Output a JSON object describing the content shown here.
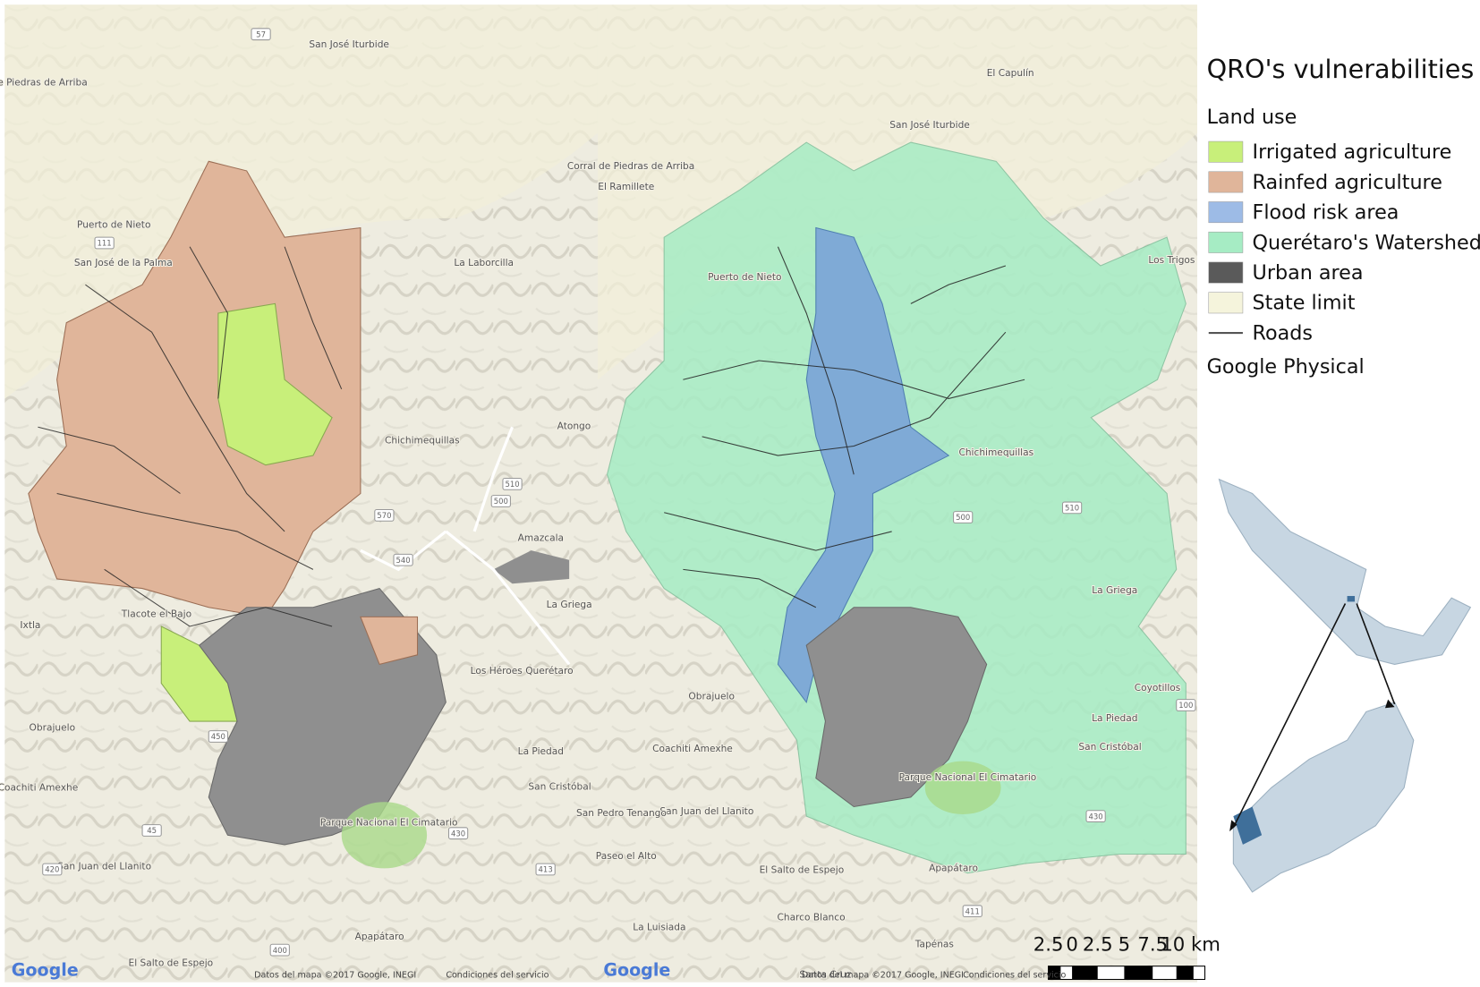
{
  "legend": {
    "title": "QRO's vulnerabilities",
    "group": "Land use",
    "items": [
      {
        "label": "Irrigated agriculture",
        "color": "#c8ef7a"
      },
      {
        "label": "Rainfed agriculture",
        "color": "#e0b59a"
      },
      {
        "label": "Flood risk area",
        "color": "#9dbbe6"
      },
      {
        "label": "Querétaro's Watershed",
        "color": "#a6ecc4"
      },
      {
        "label": "Urban area",
        "color": "#5a5a5a"
      },
      {
        "label": "State limit",
        "color": "#f5f4dc"
      },
      {
        "label": "Roads",
        "color": "#555555"
      }
    ],
    "basemap": "Google Physical"
  },
  "left_map": {
    "places": [
      "San José Iturbide",
      "Corral de Piedras de Arriba",
      "Puerto de Nieto",
      "San José de la Palma",
      "La Laborcilla",
      "Chichimequillas",
      "Amazcala",
      "Tlacote el Bajo",
      "Ixtla",
      "Obrajuelo",
      "Coachiti Amexhe",
      "San Juan del Llanito",
      "El Salto de Espejo",
      "Apapátaro",
      "Parque Nacional El Cimatario",
      "Los Héroes Querétaro",
      "La Piedad",
      "San Cristóbal",
      "Atongo",
      "La Griega"
    ],
    "roads": [
      "57",
      "111",
      "570",
      "510",
      "500",
      "540",
      "450",
      "45",
      "420",
      "430",
      "413",
      "400"
    ],
    "logo": "Google",
    "attribution": "Datos del mapa ©2017 Google, INEGI",
    "terms": "Condiciones del servicio"
  },
  "right_map": {
    "places": [
      "El Capulín",
      "San José Iturbide",
      "Corral de Piedras de Arriba",
      "El Ramillete",
      "Puerto de Nieto",
      "Los Trigos",
      "Chichimequillas",
      "La Griega",
      "Coyotillos",
      "Obrajuelo",
      "Coachiti Amexhe",
      "San Juan del Llanito",
      "San Pedro Tenango",
      "Paseo el Alto",
      "El Salto de Espejo",
      "Charco Blanco",
      "La Luisiada",
      "Apapátaro",
      "Tapénas",
      "Santa Cruz",
      "Parque Nacional El Cimatario",
      "San Cristóbal",
      "La Piedad"
    ],
    "roads": [
      "510",
      "500",
      "100",
      "430",
      "411"
    ],
    "logo": "Google",
    "attribution": "Datos del mapa ©2017 Google, INEGI",
    "terms": "Condiciones del servicio"
  },
  "scale_bar": {
    "labels": [
      "2.5",
      "0",
      "2.5",
      "5",
      "7.5",
      "10 km"
    ]
  }
}
